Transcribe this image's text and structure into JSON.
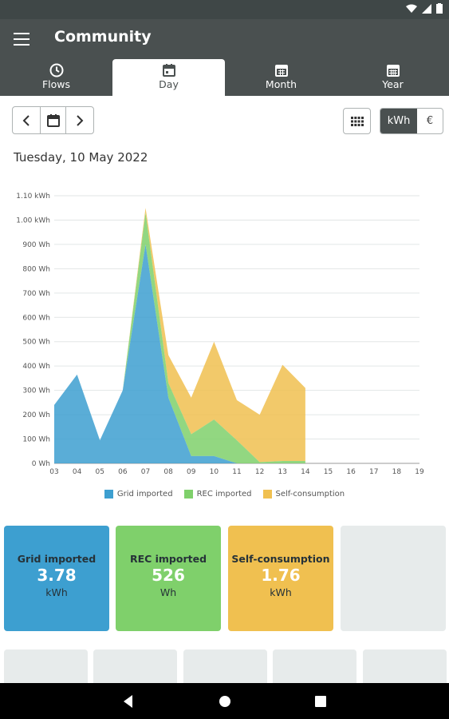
{
  "app": {
    "title": "Community"
  },
  "tabs": [
    {
      "label": "Flows",
      "icon": "clock-icon"
    },
    {
      "label": "Day",
      "icon": "calendar-icon"
    },
    {
      "label": "Month",
      "icon": "calendar-icon"
    },
    {
      "label": "Year",
      "icon": "calendar-icon"
    }
  ],
  "units": {
    "kwh": "kWh",
    "euro": "€"
  },
  "date_label": "Tuesday, 10 May 2022",
  "chart_data": {
    "type": "area",
    "stacked": true,
    "x": [
      "03",
      "04",
      "05",
      "06",
      "07",
      "08",
      "09",
      "10",
      "11",
      "12",
      "13",
      "14",
      "15",
      "16",
      "17",
      "18",
      "19"
    ],
    "y_ticks": [
      "0 Wh",
      "100 Wh",
      "200 Wh",
      "300 Wh",
      "400 Wh",
      "500 Wh",
      "600 Wh",
      "700 Wh",
      "800 Wh",
      "900 Wh",
      "1.00 kWh",
      "1.10 kWh"
    ],
    "ylim": [
      0,
      1100
    ],
    "y_unit": "Wh",
    "grid": true,
    "legend_position": "bottom",
    "series": [
      {
        "name": "Grid imported",
        "color": "#3d9fd0",
        "values": [
          240,
          365,
          95,
          300,
          900,
          270,
          30,
          30,
          0,
          0,
          0,
          0,
          null,
          null,
          null,
          null,
          null
        ]
      },
      {
        "name": "REC imported",
        "color": "#7fd06b",
        "values": [
          0,
          0,
          0,
          0,
          130,
          60,
          90,
          150,
          95,
          5,
          10,
          10,
          null,
          null,
          null,
          null,
          null
        ]
      },
      {
        "name": "Self-consumption",
        "color": "#f0c050",
        "values": [
          0,
          0,
          0,
          0,
          20,
          115,
          150,
          320,
          165,
          195,
          395,
          300,
          null,
          null,
          null,
          null,
          null
        ]
      }
    ]
  },
  "cards": [
    {
      "title": "Grid imported",
      "value": "3.78",
      "unit": "kWh",
      "color": "#3d9fd0"
    },
    {
      "title": "REC imported",
      "value": "526",
      "unit": "Wh",
      "color": "#7fd06b"
    },
    {
      "title": "Self-consumption",
      "value": "1.76",
      "unit": "kWh",
      "color": "#f0c050"
    }
  ]
}
